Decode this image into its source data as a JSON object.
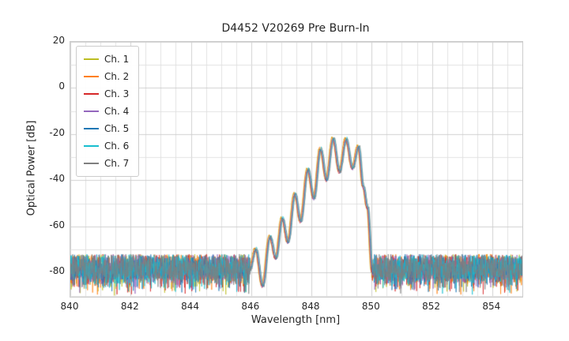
{
  "figure": {
    "background_color": "#ffffff",
    "grid_color_major": "#d0d0d0",
    "grid_color_minor": "#e2e2e2",
    "spine_color": "#cccccc",
    "text_color": "#262626"
  },
  "chart_data": {
    "type": "line",
    "title": "D4452 V20269 Pre Burn-In",
    "xlabel": "Wavelength [nm]",
    "ylabel": "Optical Power [dB]",
    "xlim": [
      840,
      855
    ],
    "ylim": [
      -90.5,
      20
    ],
    "xticks": [
      840,
      842,
      844,
      846,
      848,
      850,
      852,
      854
    ],
    "yticks": [
      20,
      0,
      -20,
      -40,
      -60,
      -80
    ],
    "grid": {
      "on": true,
      "x_minor_step": 0.5,
      "y_minor_step": 10
    },
    "legend_position": "upper left",
    "series": [
      {
        "name": "Ch. 1",
        "color": "#bcbd22"
      },
      {
        "name": "Ch. 2",
        "color": "#ff7f0e"
      },
      {
        "name": "Ch. 3",
        "color": "#d62728"
      },
      {
        "name": "Ch. 4",
        "color": "#9467bd"
      },
      {
        "name": "Ch. 5",
        "color": "#1f77b4"
      },
      {
        "name": "Ch. 6",
        "color": "#17becf"
      },
      {
        "name": "Ch. 7",
        "color": "#7f7f7f"
      }
    ],
    "signal_model": {
      "description": "Seven overlaid optical spectra; broadband noise floor across 840-855 nm with a multimode laser emission band between ~846 nm and ~850 nm peaking near -22 dB around 848.7-849.2 nm.",
      "noise_floor_db": {
        "mean": -78.5,
        "top": -72,
        "bottom": -88
      },
      "mode_spacing_nm": 0.42,
      "band_peak_valley_points": [
        [
          845.95,
          -79.0
        ],
        [
          846.15,
          -70.0
        ],
        [
          846.38,
          -86.0
        ],
        [
          846.62,
          -64.5
        ],
        [
          846.82,
          -74.0
        ],
        [
          847.03,
          -56.5
        ],
        [
          847.22,
          -67.0
        ],
        [
          847.45,
          -46.0
        ],
        [
          847.64,
          -58.0
        ],
        [
          847.88,
          -35.5
        ],
        [
          848.08,
          -48.0
        ],
        [
          848.3,
          -26.5
        ],
        [
          848.5,
          -40.0
        ],
        [
          848.72,
          -22.0
        ],
        [
          848.93,
          -36.5
        ],
        [
          849.15,
          -22.3
        ],
        [
          849.36,
          -35.0
        ],
        [
          849.56,
          -25.5
        ],
        [
          849.72,
          -43.0
        ],
        [
          849.86,
          -52.0
        ],
        [
          850.02,
          -80.0
        ]
      ]
    }
  }
}
